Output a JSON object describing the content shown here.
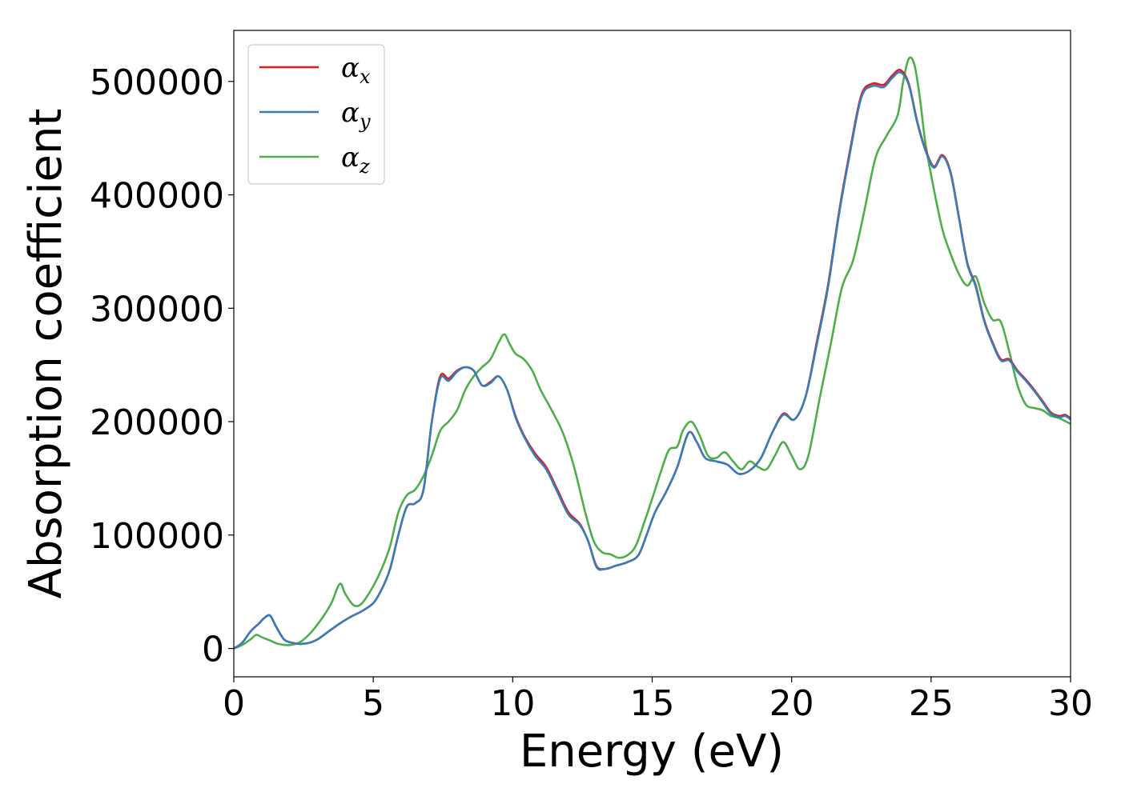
{
  "chart_data": {
    "type": "line",
    "xlabel": "Energy (eV)",
    "ylabel": "Absorption coefficient",
    "xlim": [
      0,
      30
    ],
    "ylim": [
      -25000,
      545000
    ],
    "xticks": [
      0,
      5,
      10,
      15,
      20,
      25,
      30
    ],
    "yticks": [
      0,
      100000,
      200000,
      300000,
      400000,
      500000
    ],
    "grid": false,
    "legend_position": "top-left",
    "series": [
      {
        "name": "α",
        "subscript": "x",
        "color": "#e41a1c",
        "x": [
          0,
          0.3,
          0.6,
          0.9,
          1.1,
          1.3,
          1.5,
          1.8,
          2.1,
          2.4,
          2.7,
          3.0,
          3.4,
          3.8,
          4.2,
          4.6,
          5.0,
          5.3,
          5.6,
          5.9,
          6.2,
          6.5,
          6.8,
          7.1,
          7.4,
          7.7,
          8.0,
          8.3,
          8.6,
          8.9,
          9.2,
          9.5,
          9.8,
          10.1,
          10.4,
          10.8,
          11.2,
          11.6,
          12.0,
          12.4,
          12.7,
          13.0,
          13.3,
          13.7,
          14.1,
          14.5,
          14.8,
          15.1,
          15.5,
          15.9,
          16.3,
          16.6,
          16.9,
          17.3,
          17.7,
          18.1,
          18.5,
          18.9,
          19.3,
          19.7,
          20.1,
          20.5,
          20.9,
          21.3,
          21.7,
          22.1,
          22.5,
          22.9,
          23.3,
          23.6,
          23.9,
          24.2,
          24.5,
          24.8,
          25.1,
          25.4,
          25.7,
          26.0,
          26.3,
          26.6,
          26.9,
          27.2,
          27.5,
          27.8,
          28.1,
          28.4,
          28.7,
          29.0,
          29.3,
          29.6,
          29.8,
          30.0
        ],
        "values": [
          0,
          5000,
          15000,
          22000,
          27000,
          29000,
          20000,
          8000,
          5000,
          4000,
          5000,
          8000,
          15000,
          22000,
          28000,
          33000,
          40000,
          52000,
          70000,
          100000,
          125000,
          128000,
          140000,
          200000,
          240000,
          238000,
          245000,
          248000,
          245000,
          232000,
          235000,
          240000,
          228000,
          205000,
          188000,
          172000,
          160000,
          140000,
          120000,
          110000,
          95000,
          73000,
          70000,
          73000,
          76000,
          82000,
          100000,
          120000,
          138000,
          160000,
          190000,
          182000,
          168000,
          165000,
          162000,
          154000,
          157000,
          168000,
          190000,
          207000,
          202000,
          222000,
          270000,
          320000,
          385000,
          440000,
          488000,
          498000,
          497000,
          505000,
          510000,
          498000,
          465000,
          440000,
          425000,
          435000,
          420000,
          380000,
          340000,
          320000,
          290000,
          270000,
          255000,
          255000,
          245000,
          237000,
          228000,
          218000,
          208000,
          205000,
          206000,
          203000
        ]
      },
      {
        "name": "α",
        "subscript": "y",
        "color": "#377eb8",
        "x": [
          0,
          0.3,
          0.6,
          0.9,
          1.1,
          1.3,
          1.5,
          1.8,
          2.1,
          2.4,
          2.7,
          3.0,
          3.4,
          3.8,
          4.2,
          4.6,
          5.0,
          5.3,
          5.6,
          5.9,
          6.2,
          6.5,
          6.8,
          7.1,
          7.4,
          7.7,
          8.0,
          8.3,
          8.6,
          8.9,
          9.2,
          9.5,
          9.8,
          10.1,
          10.4,
          10.8,
          11.2,
          11.6,
          12.0,
          12.4,
          12.7,
          13.0,
          13.3,
          13.7,
          14.1,
          14.5,
          14.8,
          15.1,
          15.5,
          15.9,
          16.3,
          16.6,
          16.9,
          17.3,
          17.7,
          18.1,
          18.5,
          18.9,
          19.3,
          19.7,
          20.1,
          20.5,
          20.9,
          21.3,
          21.7,
          22.1,
          22.5,
          22.9,
          23.3,
          23.6,
          23.9,
          24.2,
          24.5,
          24.8,
          25.1,
          25.4,
          25.7,
          26.0,
          26.3,
          26.6,
          26.9,
          27.2,
          27.5,
          27.8,
          28.1,
          28.4,
          28.7,
          29.0,
          29.3,
          29.6,
          29.8,
          30.0
        ],
        "values": [
          0,
          5000,
          15000,
          22000,
          27000,
          29000,
          20000,
          8000,
          5000,
          4000,
          5000,
          8000,
          15000,
          22000,
          28000,
          33000,
          40000,
          52000,
          70000,
          100000,
          125000,
          128000,
          140000,
          200000,
          238000,
          236000,
          244000,
          248000,
          245000,
          232000,
          234000,
          240000,
          228000,
          204000,
          187000,
          170000,
          158000,
          138000,
          118000,
          109000,
          95000,
          72000,
          70000,
          73000,
          76000,
          82000,
          100000,
          120000,
          138000,
          160000,
          190000,
          182000,
          168000,
          165000,
          162000,
          154000,
          157000,
          168000,
          190000,
          206000,
          202000,
          222000,
          268000,
          318000,
          383000,
          438000,
          486000,
          496000,
          495000,
          503000,
          508000,
          497000,
          464000,
          439000,
          424000,
          434000,
          419000,
          379000,
          339000,
          319000,
          289000,
          269000,
          254000,
          254000,
          244000,
          236000,
          227000,
          217000,
          207000,
          204000,
          205000,
          202000
        ]
      },
      {
        "name": "α",
        "subscript": "z",
        "color": "#4daf4a",
        "x": [
          0,
          0.3,
          0.6,
          0.8,
          1.0,
          1.3,
          1.6,
          2.0,
          2.4,
          2.8,
          3.2,
          3.5,
          3.8,
          4.0,
          4.3,
          4.6,
          5.0,
          5.3,
          5.6,
          5.9,
          6.2,
          6.5,
          6.8,
          7.1,
          7.4,
          7.7,
          8.0,
          8.3,
          8.6,
          8.9,
          9.2,
          9.5,
          9.7,
          9.9,
          10.1,
          10.4,
          10.7,
          11.0,
          11.4,
          11.8,
          12.2,
          12.6,
          12.9,
          13.2,
          13.5,
          13.8,
          14.1,
          14.4,
          14.7,
          15.0,
          15.3,
          15.6,
          15.9,
          16.1,
          16.4,
          16.7,
          17.0,
          17.3,
          17.6,
          17.9,
          18.2,
          18.5,
          18.8,
          19.1,
          19.4,
          19.7,
          20.0,
          20.3,
          20.6,
          21.0,
          21.4,
          21.8,
          22.2,
          22.6,
          23.0,
          23.4,
          23.8,
          24.0,
          24.2,
          24.4,
          24.6,
          24.8,
          25.1,
          25.4,
          25.7,
          26.0,
          26.3,
          26.6,
          26.9,
          27.2,
          27.5,
          27.8,
          28.1,
          28.4,
          28.7,
          29.0,
          29.3,
          29.6,
          30.0
        ],
        "values": [
          0,
          3000,
          8000,
          12000,
          10000,
          7000,
          4000,
          3000,
          6000,
          15000,
          28000,
          40000,
          57000,
          48000,
          38000,
          40000,
          55000,
          70000,
          90000,
          120000,
          135000,
          140000,
          152000,
          170000,
          192000,
          200000,
          210000,
          228000,
          240000,
          248000,
          255000,
          270000,
          277000,
          268000,
          260000,
          255000,
          245000,
          228000,
          210000,
          190000,
          160000,
          120000,
          95000,
          85000,
          83000,
          80000,
          82000,
          90000,
          110000,
          132000,
          155000,
          175000,
          178000,
          192000,
          200000,
          188000,
          170000,
          168000,
          173000,
          165000,
          158000,
          165000,
          160000,
          158000,
          170000,
          182000,
          170000,
          158000,
          170000,
          220000,
          268000,
          318000,
          342000,
          385000,
          432000,
          452000,
          470000,
          500000,
          520000,
          515000,
          485000,
          445000,
          405000,
          370000,
          348000,
          330000,
          320000,
          328000,
          305000,
          290000,
          288000,
          262000,
          232000,
          215000,
          212000,
          210000,
          205000,
          203000,
          198000
        ]
      }
    ]
  }
}
